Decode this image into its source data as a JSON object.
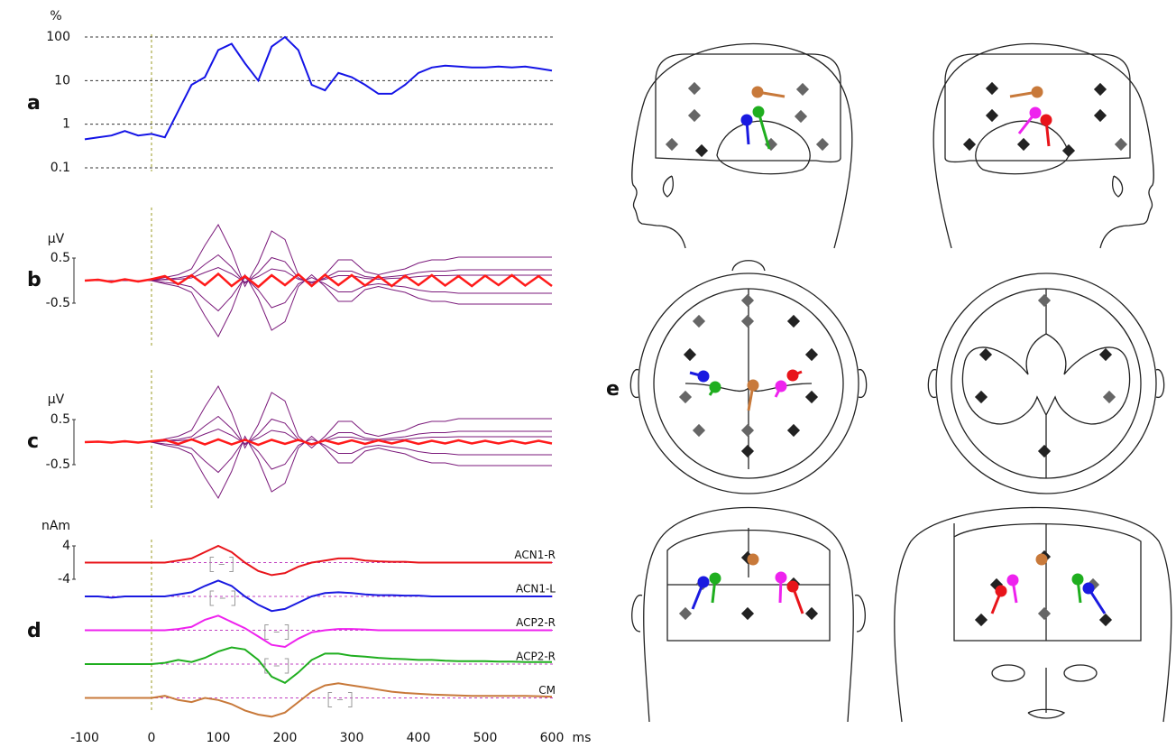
{
  "chart_data": [
    {
      "type": "line",
      "label": "a",
      "ylabel": "%",
      "log_y": true,
      "grid": true,
      "onset": 0,
      "xlim": [
        -100,
        600
      ],
      "ylim": [
        0.1,
        100
      ],
      "yticks": [
        0.1,
        1,
        10,
        100
      ],
      "x": [
        -100,
        -80,
        -60,
        -40,
        -20,
        0,
        20,
        40,
        60,
        80,
        100,
        120,
        140,
        160,
        180,
        200,
        220,
        240,
        260,
        280,
        300,
        320,
        340,
        360,
        380,
        400,
        420,
        440,
        460,
        480,
        500,
        520,
        540,
        560,
        580,
        600
      ],
      "series": [
        {
          "color": "#1414e6",
          "values": [
            0.45,
            0.5,
            0.55,
            0.7,
            0.55,
            0.6,
            0.5,
            2,
            8,
            12,
            50,
            70,
            25,
            10,
            60,
            100,
            50,
            8,
            6,
            15,
            12,
            8,
            5,
            5,
            8,
            15,
            20,
            22,
            21,
            20,
            20,
            21,
            20,
            21,
            19,
            17
          ]
        }
      ]
    },
    {
      "type": "butterfly",
      "label": "b",
      "ylabel": "μV",
      "onset": 0,
      "xlim": [
        -100,
        600
      ],
      "ylim": [
        -1.5,
        1.5
      ],
      "yticks": [
        0.5,
        -0.5
      ],
      "x": [
        -100,
        -80,
        -60,
        -40,
        -20,
        0,
        20,
        40,
        60,
        80,
        100,
        120,
        140,
        160,
        180,
        200,
        220,
        240,
        260,
        280,
        300,
        320,
        340,
        360,
        380,
        400,
        420,
        440,
        460,
        480,
        500,
        520,
        540,
        560,
        580,
        600
      ],
      "series": [
        {
          "color": "#7b1a7b",
          "values": [
            0,
            0,
            0,
            0,
            0,
            0,
            0.07,
            0.13,
            0.26,
            0.78,
            1.24,
            0.65,
            -0.13,
            0.39,
            1.1,
            0.91,
            0.13,
            -0.13,
            0.13,
            0.46,
            0.46,
            0.2,
            0.13,
            0.2,
            0.26,
            0.39,
            0.46,
            0.46,
            0.52,
            0.52,
            0.52,
            0.52,
            0.52,
            0.52,
            0.52,
            0.52
          ]
        },
        {
          "color": "#7b1a7b",
          "values": [
            0,
            0,
            0,
            0,
            0,
            0,
            0.03,
            0.06,
            0.12,
            0.36,
            0.57,
            0.3,
            -0.06,
            0.18,
            0.51,
            0.42,
            0.06,
            -0.06,
            0.06,
            0.21,
            0.21,
            0.09,
            0.06,
            0.09,
            0.12,
            0.18,
            0.21,
            0.21,
            0.24,
            0.24,
            0.24,
            0.24,
            0.24,
            0.24,
            0.24,
            0.24
          ]
        },
        {
          "color": "#7b1a7b",
          "values": [
            0,
            0,
            0,
            0,
            0,
            0,
            -0.04,
            -0.07,
            -0.14,
            -0.42,
            -0.67,
            -0.35,
            0.07,
            -0.21,
            -0.6,
            -0.49,
            -0.07,
            0.07,
            -0.07,
            -0.25,
            -0.25,
            -0.11,
            -0.07,
            -0.11,
            -0.14,
            -0.21,
            -0.25,
            -0.25,
            -0.28,
            -0.28,
            -0.28,
            -0.28,
            -0.28,
            -0.28,
            -0.28,
            -0.28
          ]
        },
        {
          "color": "#7b1a7b",
          "values": [
            0,
            0,
            0,
            0,
            0,
            0,
            -0.07,
            -0.13,
            -0.26,
            -0.78,
            -1.24,
            -0.65,
            0.13,
            -0.39,
            -1.1,
            -0.91,
            -0.13,
            0.13,
            -0.13,
            -0.46,
            -0.46,
            -0.2,
            -0.13,
            -0.2,
            -0.26,
            -0.39,
            -0.46,
            -0.46,
            -0.52,
            -0.52,
            -0.52,
            -0.52,
            -0.52,
            -0.52,
            -0.52,
            -0.52
          ]
        },
        {
          "color": "#7b1a7b",
          "values": [
            0,
            0,
            0,
            0,
            0,
            0,
            0.02,
            0.03,
            0.06,
            0.18,
            0.29,
            0.15,
            -0.03,
            0.09,
            0.26,
            0.21,
            0.03,
            -0.03,
            0.03,
            0.11,
            0.11,
            0.05,
            0.03,
            0.05,
            0.06,
            0.09,
            0.11,
            0.11,
            0.12,
            0.12,
            0.12,
            0.12,
            0.12,
            0.12,
            0.12,
            0.12
          ]
        },
        {
          "color": "#ff1a1a",
          "values": [
            0,
            0.02,
            -0.03,
            0.03,
            -0.02,
            0.03,
            0.1,
            -0.08,
            0.12,
            -0.1,
            0.15,
            -0.12,
            0.1,
            -0.14,
            0.12,
            -0.1,
            0.14,
            -0.12,
            0.13,
            -0.1,
            0.12,
            -0.11,
            0.1,
            -0.12,
            0.11,
            -0.1,
            0.12,
            -0.11,
            0.1,
            -0.12,
            0.11,
            -0.1,
            0.12,
            -0.11,
            0.1,
            -0.12
          ]
        }
      ]
    },
    {
      "type": "butterfly",
      "label": "c",
      "ylabel": "μV",
      "onset": 0,
      "xlim": [
        -100,
        600
      ],
      "ylim": [
        -1.5,
        1.5
      ],
      "yticks": [
        0.5,
        -0.5
      ],
      "x": [
        -100,
        -80,
        -60,
        -40,
        -20,
        0,
        20,
        40,
        60,
        80,
        100,
        120,
        140,
        160,
        180,
        200,
        220,
        240,
        260,
        280,
        300,
        320,
        340,
        360,
        380,
        400,
        420,
        440,
        460,
        480,
        500,
        520,
        540,
        560,
        580,
        600
      ],
      "series": [
        {
          "color": "#7b1a7b",
          "values": [
            0,
            0,
            0,
            0,
            0,
            0,
            0.07,
            0.13,
            0.26,
            0.78,
            1.24,
            0.65,
            -0.13,
            0.39,
            1.1,
            0.91,
            0.13,
            -0.13,
            0.13,
            0.46,
            0.46,
            0.2,
            0.13,
            0.2,
            0.26,
            0.39,
            0.46,
            0.46,
            0.52,
            0.52,
            0.52,
            0.52,
            0.52,
            0.52,
            0.52,
            0.52
          ]
        },
        {
          "color": "#7b1a7b",
          "values": [
            0,
            0,
            0,
            0,
            0,
            0,
            0.03,
            0.06,
            0.12,
            0.36,
            0.57,
            0.3,
            -0.06,
            0.18,
            0.51,
            0.42,
            0.06,
            -0.06,
            0.06,
            0.21,
            0.21,
            0.09,
            0.06,
            0.09,
            0.12,
            0.18,
            0.21,
            0.21,
            0.24,
            0.24,
            0.24,
            0.24,
            0.24,
            0.24,
            0.24,
            0.24
          ]
        },
        {
          "color": "#7b1a7b",
          "values": [
            0,
            0,
            0,
            0,
            0,
            0,
            -0.04,
            -0.07,
            -0.14,
            -0.42,
            -0.67,
            -0.35,
            0.07,
            -0.21,
            -0.6,
            -0.49,
            -0.07,
            0.07,
            -0.07,
            -0.25,
            -0.25,
            -0.11,
            -0.07,
            -0.11,
            -0.14,
            -0.21,
            -0.25,
            -0.25,
            -0.28,
            -0.28,
            -0.28,
            -0.28,
            -0.28,
            -0.28,
            -0.28,
            -0.28
          ]
        },
        {
          "color": "#7b1a7b",
          "values": [
            0,
            0,
            0,
            0,
            0,
            0,
            -0.07,
            -0.13,
            -0.26,
            -0.78,
            -1.24,
            -0.65,
            0.13,
            -0.39,
            -1.1,
            -0.91,
            -0.13,
            0.13,
            -0.13,
            -0.46,
            -0.46,
            -0.2,
            -0.13,
            -0.2,
            -0.26,
            -0.39,
            -0.46,
            -0.46,
            -0.52,
            -0.52,
            -0.52,
            -0.52,
            -0.52,
            -0.52,
            -0.52,
            -0.52
          ]
        },
        {
          "color": "#7b1a7b",
          "values": [
            0,
            0,
            0,
            0,
            0,
            0,
            0.02,
            0.03,
            0.06,
            0.18,
            0.29,
            0.15,
            -0.03,
            0.09,
            0.26,
            0.21,
            0.03,
            -0.03,
            0.03,
            0.11,
            0.11,
            0.05,
            0.03,
            0.05,
            0.06,
            0.09,
            0.11,
            0.11,
            0.12,
            0.12,
            0.12,
            0.12,
            0.12,
            0.12,
            0.12,
            0.12
          ]
        },
        {
          "color": "#ff1a1a",
          "values": [
            0,
            0.01,
            -0.01,
            0.02,
            -0.01,
            0.02,
            0.05,
            -0.04,
            0.06,
            -0.05,
            0.06,
            -0.05,
            0.05,
            -0.06,
            0.05,
            -0.04,
            0.05,
            -0.05,
            0.04,
            -0.04,
            0.04,
            -0.04,
            0.04,
            -0.03,
            0.04,
            -0.04,
            0.03,
            -0.03,
            0.04,
            -0.03,
            0.03,
            -0.03,
            0.03,
            -0.03,
            0.03,
            -0.03
          ]
        }
      ]
    },
    {
      "type": "waveforms",
      "label": "d",
      "ylabel": "nAm",
      "xlabel": "ms",
      "onset": 0,
      "xlim": [
        -100,
        600
      ],
      "ylim": [
        -4,
        4
      ],
      "yticks": [
        4,
        -4
      ],
      "xticks": [
        -100,
        0,
        100,
        200,
        300,
        400,
        500,
        600
      ],
      "x": [
        -100,
        -80,
        -60,
        -40,
        -20,
        0,
        20,
        40,
        60,
        80,
        100,
        120,
        140,
        160,
        180,
        200,
        220,
        240,
        260,
        280,
        300,
        320,
        340,
        360,
        380,
        400,
        420,
        440,
        460,
        480,
        500,
        520,
        540,
        560,
        580,
        600
      ],
      "series": [
        {
          "name": "ACN1-R",
          "color": "#e8141a",
          "window": [
            88,
            122
          ],
          "values": [
            0,
            0,
            0,
            0,
            0,
            0,
            0,
            0.5,
            1,
            2.5,
            4,
            2.5,
            0,
            -2,
            -3,
            -2.5,
            -1,
            0,
            0.5,
            1,
            1,
            0.5,
            0.3,
            0.2,
            0.2,
            0,
            0,
            0,
            0,
            0,
            0,
            0,
            0,
            0,
            0,
            0
          ]
        },
        {
          "name": "ACN1-L",
          "color": "#1a1ae0",
          "window": [
            88,
            125
          ],
          "values": [
            0,
            0,
            -0.3,
            0,
            0,
            0,
            0,
            0.5,
            1,
            2.5,
            3.8,
            2.5,
            0,
            -2,
            -3.5,
            -3,
            -1.5,
            0,
            0.8,
            1,
            0.8,
            0.5,
            0.3,
            0.3,
            0.2,
            0.2,
            0,
            0,
            0,
            0,
            0,
            0,
            0,
            0,
            0,
            0
          ]
        },
        {
          "name": "ACP2-R",
          "color": "#ee22ee",
          "window": [
            170,
            205
          ],
          "values": [
            0,
            0,
            0,
            0,
            0,
            0,
            0,
            0.3,
            0.8,
            2.5,
            3.5,
            2,
            0.5,
            -1.5,
            -3.5,
            -4,
            -2,
            -0.5,
            0,
            0.3,
            0.3,
            0.2,
            0,
            0,
            0,
            0,
            0,
            0,
            0,
            0,
            0,
            0,
            0,
            0,
            0,
            0
          ]
        },
        {
          "name": "ACP2-R",
          "color": "#1fae1f",
          "window": [
            170,
            205
          ],
          "values": [
            0,
            0,
            0,
            0,
            0,
            0,
            0.3,
            1,
            0.5,
            1.5,
            3,
            4,
            3.5,
            1,
            -3,
            -4.5,
            -2,
            1,
            2.5,
            2.5,
            2,
            1.8,
            1.5,
            1.3,
            1.2,
            1,
            1,
            0.8,
            0.7,
            0.7,
            0.7,
            0.6,
            0.6,
            0.5,
            0.5,
            0.5
          ]
        },
        {
          "name": "CM",
          "color": "#c8793a",
          "window": [
            265,
            300
          ],
          "values": [
            0,
            0,
            0,
            0,
            0,
            0,
            0.5,
            -0.5,
            -1,
            0,
            -0.5,
            -1.5,
            -3,
            -4,
            -4.5,
            -3.5,
            -1,
            1.5,
            3,
            3.5,
            3,
            2.5,
            2,
            1.5,
            1.2,
            1,
            0.8,
            0.7,
            0.6,
            0.5,
            0.5,
            0.5,
            0.5,
            0.5,
            0.4,
            0.3
          ]
        }
      ]
    }
  ],
  "panel_e": {
    "label": "e"
  }
}
